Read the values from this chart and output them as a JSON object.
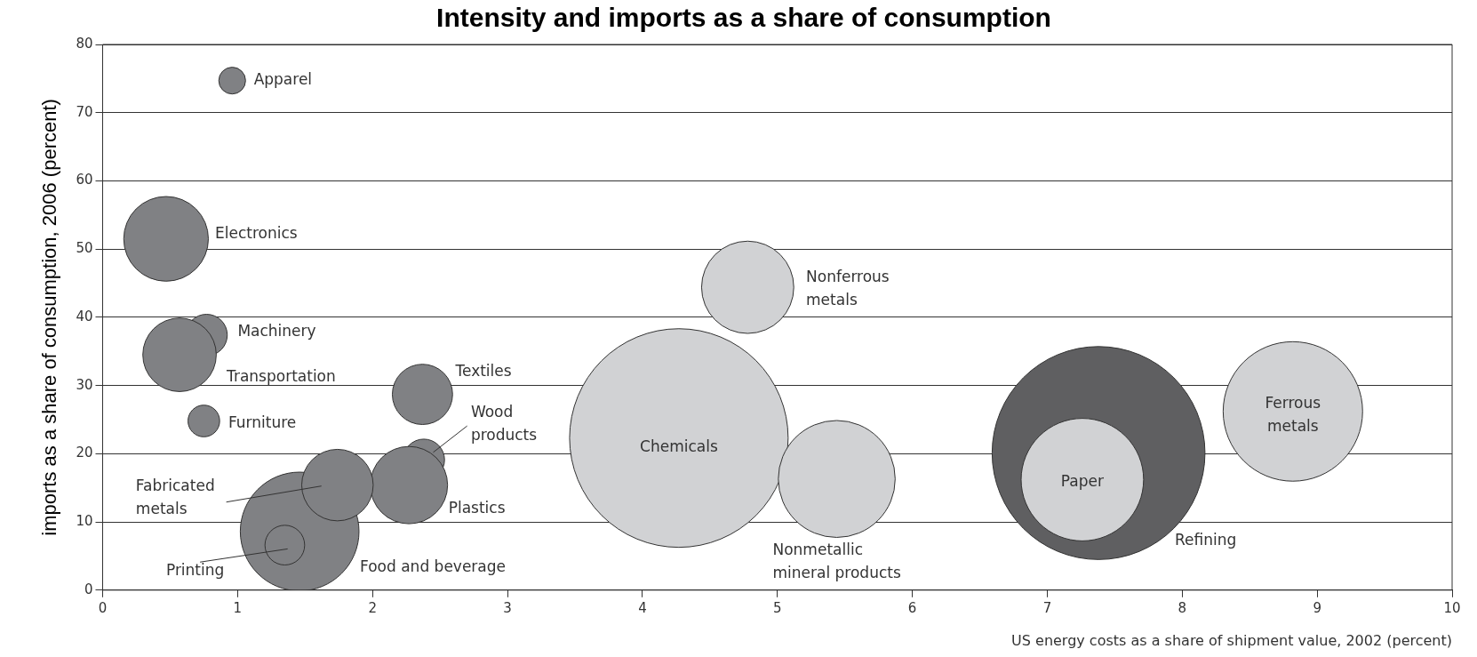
{
  "chart_data": {
    "type": "bubble",
    "title": "Intensity and imports as a share of consumption",
    "xlabel": "US energy costs as a share of shipment value, 2002 (percent)",
    "ylabel": "imports as a share of consumption, 2006 (percent)",
    "xlim": [
      0,
      10
    ],
    "xticks": [
      0,
      1,
      2,
      3,
      4,
      5,
      6,
      7,
      8,
      9,
      10
    ],
    "ylim": [
      0,
      80
    ],
    "yticks": [
      0,
      10,
      20,
      30,
      40,
      50,
      60,
      70,
      80
    ],
    "grid": "y",
    "legend": false,
    "series": [
      {
        "name": "Apparel",
        "color": "#808184",
        "x": [
          0.96
        ],
        "values": [
          74.7
        ],
        "sizes": [
          0.015
        ]
      },
      {
        "name": "Electronics",
        "color": "#808184",
        "x": [
          0.47
        ],
        "values": [
          51.5
        ],
        "sizes": [
          0.15
        ]
      },
      {
        "name": "Machinery",
        "color": "#808184",
        "x": [
          0.77
        ],
        "values": [
          37.4
        ],
        "sizes": [
          0.036
        ]
      },
      {
        "name": "Transportation",
        "color": "#808184",
        "x": [
          0.57
        ],
        "values": [
          34.5
        ],
        "sizes": [
          0.113
        ]
      },
      {
        "name": "Furniture",
        "color": "#808184",
        "x": [
          0.75
        ],
        "values": [
          24.8
        ],
        "sizes": [
          0.021
        ]
      },
      {
        "name": "Textiles",
        "color": "#808184",
        "x": [
          2.37
        ],
        "values": [
          28.7
        ],
        "sizes": [
          0.076
        ]
      },
      {
        "name": "Wood products",
        "color": "#808184",
        "x": [
          2.38
        ],
        "values": [
          19.1
        ],
        "sizes": [
          0.036
        ]
      },
      {
        "name": "Plastics",
        "color": "#808184",
        "x": [
          2.27
        ],
        "values": [
          15.4
        ],
        "sizes": [
          0.125
        ]
      },
      {
        "name": "Food and beverage",
        "color": "#808184",
        "x": [
          1.46
        ],
        "values": [
          8.6
        ],
        "sizes": [
          0.295
        ]
      },
      {
        "name": "Fabricated metals",
        "color": "#808184",
        "x": [
          1.74
        ],
        "values": [
          15.4
        ],
        "sizes": [
          0.107
        ]
      },
      {
        "name": "Printing",
        "color": "#808184",
        "x": [
          1.35
        ],
        "values": [
          6.6
        ],
        "sizes": [
          0.033
        ]
      },
      {
        "name": "Chemicals",
        "color": "#d1d2d4",
        "x": [
          4.27
        ],
        "values": [
          22.3
        ],
        "sizes": [
          1
        ]
      },
      {
        "name": "Nonmetallic mineral products",
        "color": "#d1d2d4",
        "x": [
          5.44
        ],
        "values": [
          16.3
        ],
        "sizes": [
          0.286
        ]
      },
      {
        "name": "Nonferrous metals",
        "color": "#d1d2d4",
        "x": [
          4.78
        ],
        "values": [
          44.4
        ],
        "sizes": [
          0.178
        ]
      },
      {
        "name": "Refining",
        "color": "#5f5f61",
        "x": [
          7.38
        ],
        "values": [
          20.1
        ],
        "sizes": [
          0.949
        ]
      },
      {
        "name": "Paper",
        "color": "#d1d2d4",
        "x": [
          7.26
        ],
        "values": [
          16.2
        ],
        "sizes": [
          0.314
        ]
      },
      {
        "name": "Ferrous metals",
        "color": "#d1d2d4",
        "x": [
          8.82
        ],
        "values": [
          26.2
        ],
        "sizes": [
          0.407
        ]
      }
    ]
  }
}
